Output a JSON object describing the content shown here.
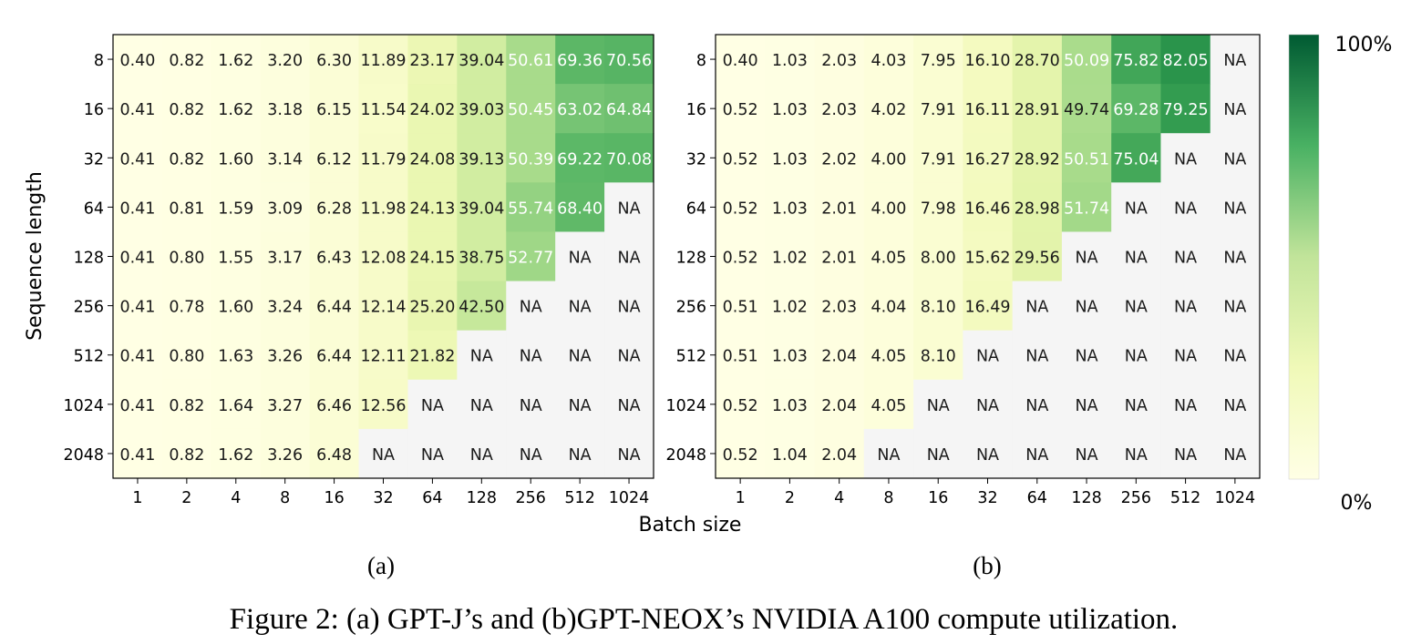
{
  "figure": {
    "caption": "Figure 2: (a) GPT-J’s and (b)GPT-NEOX’s NVIDIA A100 compute utilization.",
    "ylabel": "Sequence length",
    "xlabel": "Batch size",
    "colorbar": {
      "max_label": "100%",
      "min_label": "0%",
      "low_color": "#ffffe5",
      "high_color": "#005a32"
    },
    "na_color": "#f5f5f5"
  },
  "chart_data": [
    {
      "type": "heatmap",
      "panel_label": "(a)",
      "x": [
        "1",
        "2",
        "4",
        "8",
        "16",
        "32",
        "64",
        "128",
        "256",
        "512",
        "1024"
      ],
      "y": [
        "8",
        "16",
        "32",
        "64",
        "128",
        "256",
        "512",
        "1024",
        "2048"
      ],
      "values": [
        [
          "0.40",
          "0.82",
          "1.62",
          "3.20",
          "6.30",
          "11.89",
          "23.17",
          "39.04",
          "50.61",
          "69.36",
          "70.56"
        ],
        [
          "0.41",
          "0.82",
          "1.62",
          "3.18",
          "6.15",
          "11.54",
          "24.02",
          "39.03",
          "50.45",
          "63.02",
          "64.84"
        ],
        [
          "0.41",
          "0.82",
          "1.60",
          "3.14",
          "6.12",
          "11.79",
          "24.08",
          "39.13",
          "50.39",
          "69.22",
          "70.08"
        ],
        [
          "0.41",
          "0.81",
          "1.59",
          "3.09",
          "6.28",
          "11.98",
          "24.13",
          "39.04",
          "55.74",
          "68.40",
          "NA"
        ],
        [
          "0.41",
          "0.80",
          "1.55",
          "3.17",
          "6.43",
          "12.08",
          "24.15",
          "38.75",
          "52.77",
          "NA",
          "NA"
        ],
        [
          "0.41",
          "0.78",
          "1.60",
          "3.24",
          "6.44",
          "12.14",
          "25.20",
          "42.50",
          "NA",
          "NA",
          "NA"
        ],
        [
          "0.41",
          "0.80",
          "1.63",
          "3.26",
          "6.44",
          "12.11",
          "21.82",
          "NA",
          "NA",
          "NA",
          "NA"
        ],
        [
          "0.41",
          "0.82",
          "1.64",
          "3.27",
          "6.46",
          "12.56",
          "NA",
          "NA",
          "NA",
          "NA",
          "NA"
        ],
        [
          "0.41",
          "0.82",
          "1.62",
          "3.26",
          "6.48",
          "NA",
          "NA",
          "NA",
          "NA",
          "NA",
          "NA"
        ]
      ]
    },
    {
      "type": "heatmap",
      "panel_label": "(b)",
      "x": [
        "1",
        "2",
        "4",
        "8",
        "16",
        "32",
        "64",
        "128",
        "256",
        "512",
        "1024"
      ],
      "y": [
        "8",
        "16",
        "32",
        "64",
        "128",
        "256",
        "512",
        "1024",
        "2048"
      ],
      "values": [
        [
          "0.40",
          "1.03",
          "2.03",
          "4.03",
          "7.95",
          "16.10",
          "28.70",
          "50.09",
          "75.82",
          "82.05",
          "NA"
        ],
        [
          "0.52",
          "1.03",
          "2.03",
          "4.02",
          "7.91",
          "16.11",
          "28.91",
          "49.74",
          "69.28",
          "79.25",
          "NA"
        ],
        [
          "0.52",
          "1.03",
          "2.02",
          "4.00",
          "7.91",
          "16.27",
          "28.92",
          "50.51",
          "75.04",
          "NA",
          "NA"
        ],
        [
          "0.52",
          "1.03",
          "2.01",
          "4.00",
          "7.98",
          "16.46",
          "28.98",
          "51.74",
          "NA",
          "NA",
          "NA"
        ],
        [
          "0.52",
          "1.02",
          "2.01",
          "4.05",
          "8.00",
          "15.62",
          "29.56",
          "NA",
          "NA",
          "NA",
          "NA"
        ],
        [
          "0.51",
          "1.02",
          "2.03",
          "4.04",
          "8.10",
          "16.49",
          "NA",
          "NA",
          "NA",
          "NA",
          "NA"
        ],
        [
          "0.51",
          "1.03",
          "2.04",
          "4.05",
          "8.10",
          "NA",
          "NA",
          "NA",
          "NA",
          "NA",
          "NA"
        ],
        [
          "0.52",
          "1.03",
          "2.04",
          "4.05",
          "NA",
          "NA",
          "NA",
          "NA",
          "NA",
          "NA",
          "NA"
        ],
        [
          "0.52",
          "1.04",
          "2.04",
          "NA",
          "NA",
          "NA",
          "NA",
          "NA",
          "NA",
          "NA",
          "NA"
        ]
      ]
    }
  ]
}
